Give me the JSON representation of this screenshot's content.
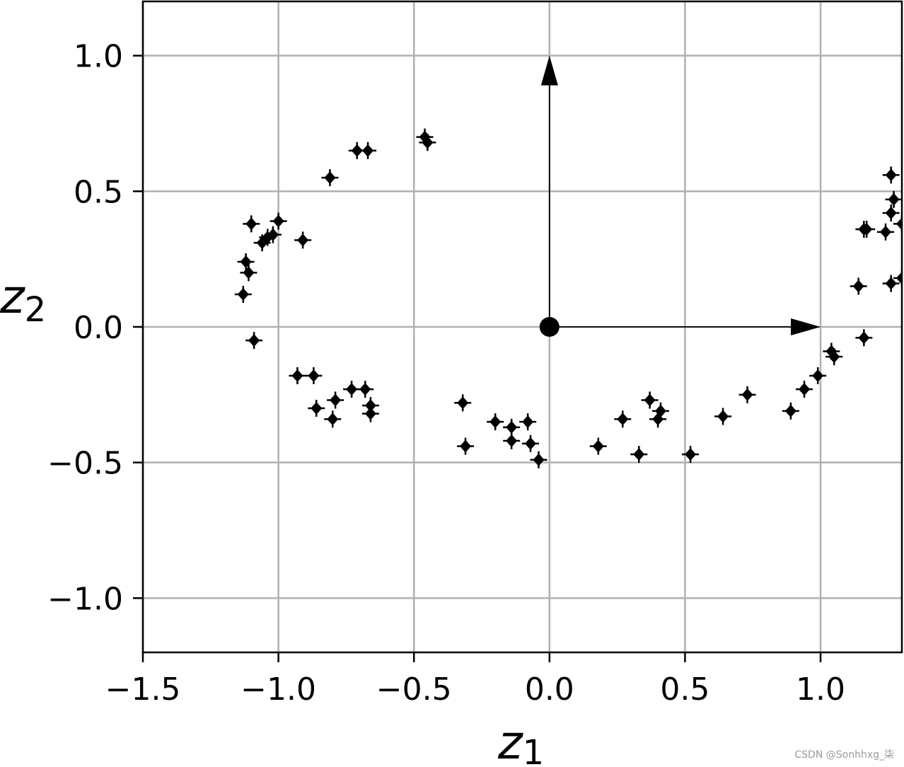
{
  "chart_data": {
    "type": "scatter",
    "title": "",
    "xlabel": "z",
    "xlabel_sub": "1",
    "ylabel": "z",
    "ylabel_sub": "2",
    "xlim": [
      -1.5,
      1.3
    ],
    "ylim": [
      -1.2,
      1.2
    ],
    "xticks": [
      -1.5,
      -1.0,
      -0.5,
      0.0,
      0.5,
      1.0
    ],
    "xtick_labels": [
      "−1.5",
      "−1.0",
      "−0.5",
      "0.0",
      "0.5",
      "1.0"
    ],
    "yticks": [
      1.0,
      0.5,
      0.0,
      -0.5,
      -1.0
    ],
    "ytick_labels": [
      "1.0",
      "0.5",
      "0.0",
      "−0.5",
      "−1.0"
    ],
    "grid": true,
    "marker_color": "#000000",
    "grid_color": "#b0b0b0",
    "points": [
      [
        -1.13,
        0.12
      ],
      [
        -1.12,
        0.24
      ],
      [
        -1.11,
        0.2
      ],
      [
        -1.09,
        -0.05
      ],
      [
        -1.1,
        0.38
      ],
      [
        -1.06,
        0.31
      ],
      [
        -1.04,
        0.33
      ],
      [
        -1.02,
        0.34
      ],
      [
        -1.0,
        0.39
      ],
      [
        -0.91,
        0.32
      ],
      [
        -0.93,
        -0.18
      ],
      [
        -0.87,
        -0.18
      ],
      [
        -0.86,
        -0.3
      ],
      [
        -0.81,
        0.55
      ],
      [
        -0.8,
        -0.34
      ],
      [
        -0.79,
        -0.27
      ],
      [
        -0.73,
        -0.23
      ],
      [
        -0.71,
        0.65
      ],
      [
        -0.68,
        -0.23
      ],
      [
        -0.67,
        0.65
      ],
      [
        -0.66,
        -0.29
      ],
      [
        -0.66,
        -0.32
      ],
      [
        -0.46,
        0.7
      ],
      [
        -0.45,
        0.68
      ],
      [
        -0.32,
        -0.28
      ],
      [
        -0.31,
        -0.44
      ],
      [
        -0.2,
        -0.35
      ],
      [
        -0.14,
        -0.42
      ],
      [
        -0.14,
        -0.37
      ],
      [
        -0.08,
        -0.35
      ],
      [
        -0.07,
        -0.43
      ],
      [
        -0.04,
        -0.49
      ],
      [
        0.18,
        -0.44
      ],
      [
        0.27,
        -0.34
      ],
      [
        0.33,
        -0.47
      ],
      [
        0.37,
        -0.27
      ],
      [
        0.4,
        -0.34
      ],
      [
        0.41,
        -0.31
      ],
      [
        0.52,
        -0.47
      ],
      [
        0.64,
        -0.33
      ],
      [
        0.73,
        -0.25
      ],
      [
        0.89,
        -0.31
      ],
      [
        0.94,
        -0.23
      ],
      [
        0.99,
        -0.18
      ],
      [
        1.04,
        -0.09
      ],
      [
        1.05,
        -0.11
      ],
      [
        1.14,
        0.15
      ],
      [
        1.16,
        0.36
      ],
      [
        1.17,
        0.36
      ],
      [
        1.16,
        -0.04
      ],
      [
        1.24,
        0.35
      ],
      [
        1.26,
        0.56
      ],
      [
        1.26,
        0.42
      ],
      [
        1.26,
        0.16
      ],
      [
        1.27,
        0.47
      ],
      [
        1.3,
        0.38
      ],
      [
        1.3,
        0.18
      ]
    ],
    "origin_point": [
      0.0,
      0.0
    ],
    "vectors": [
      {
        "from": [
          0.0,
          0.0
        ],
        "to": [
          1.0,
          0.0
        ]
      },
      {
        "from": [
          0.0,
          0.0
        ],
        "to": [
          0.0,
          1.0
        ]
      }
    ]
  },
  "watermark": "CSDN @Sonhhxg_柒"
}
